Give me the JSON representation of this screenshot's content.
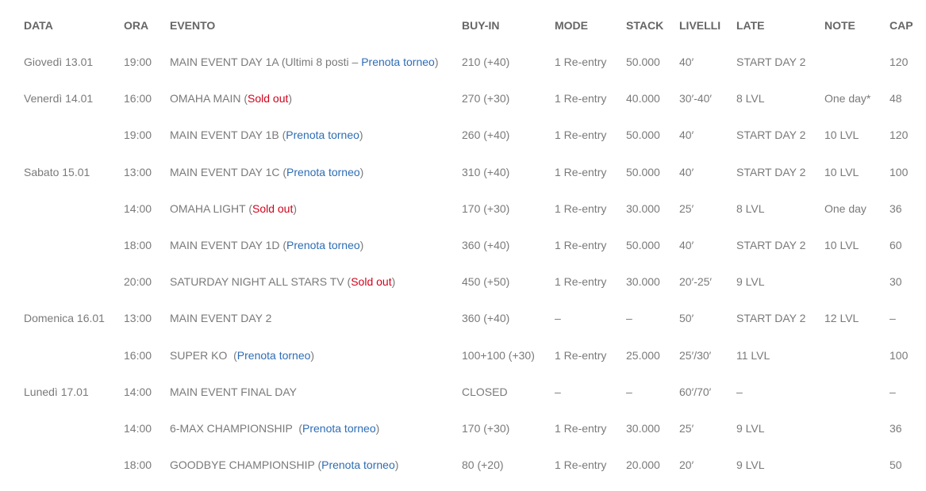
{
  "headers": [
    "DATA",
    "ORA",
    "EVENTO",
    "BUY-IN",
    "MODE",
    "STACK",
    "LIVELLI",
    "LATE",
    "NOTE",
    "CAP"
  ],
  "colors": {
    "text": "#7a7a7a",
    "header": "#666666",
    "link": "#2e6db4",
    "sold_out": "#d0021b"
  },
  "rows": [
    {
      "data": "Giovedì 13.01",
      "ora": "19:00",
      "evento": [
        {
          "t": "MAIN EVENT DAY 1A (Ultimi 8 posti – "
        },
        {
          "t": "Prenota torneo",
          "k": "link"
        },
        {
          "t": ")"
        }
      ],
      "buyin": "210 (+40)",
      "mode": "1 Re-entry",
      "stack": "50.000",
      "livelli": "40′",
      "late": "START DAY 2",
      "note": "",
      "cap": "120"
    },
    {
      "data": "Venerdì 14.01",
      "ora": "16:00",
      "evento": [
        {
          "t": "OMAHA MAIN ("
        },
        {
          "t": "Sold out",
          "k": "sold"
        },
        {
          "t": ")"
        }
      ],
      "buyin": "270 (+30)",
      "mode": "1 Re-entry",
      "stack": "40.000",
      "livelli": "30′-40′",
      "late": "8 LVL",
      "note": "One day*",
      "cap": "48"
    },
    {
      "data": "",
      "ora": "19:00",
      "evento": [
        {
          "t": "MAIN EVENT DAY 1B ("
        },
        {
          "t": "Prenota torneo",
          "k": "link"
        },
        {
          "t": ")"
        }
      ],
      "buyin": "260 (+40)",
      "mode": "1 Re-entry",
      "stack": "50.000",
      "livelli": "40′",
      "late": "START DAY 2",
      "note": "10 LVL",
      "cap": "120"
    },
    {
      "data": "Sabato 15.01",
      "ora": "13:00",
      "evento": [
        {
          "t": "MAIN EVENT DAY 1C ("
        },
        {
          "t": "Prenota torneo",
          "k": "link"
        },
        {
          "t": ")"
        }
      ],
      "buyin": "310 (+40)",
      "mode": "1 Re-entry",
      "stack": "50.000",
      "livelli": "40′",
      "late": "START DAY 2",
      "note": "10 LVL",
      "cap": "100"
    },
    {
      "data": "",
      "ora": "14:00",
      "evento": [
        {
          "t": "OMAHA LIGHT ("
        },
        {
          "t": "Sold out",
          "k": "sold"
        },
        {
          "t": ")"
        }
      ],
      "buyin": "170 (+30)",
      "mode": "1 Re-entry",
      "stack": "30.000",
      "livelli": "25′",
      "late": "8 LVL",
      "note": "One day",
      "cap": "36"
    },
    {
      "data": "",
      "ora": "18:00",
      "evento": [
        {
          "t": "MAIN EVENT DAY 1D ("
        },
        {
          "t": "Prenota torneo",
          "k": "link"
        },
        {
          "t": ")"
        }
      ],
      "buyin": "360 (+40)",
      "mode": "1 Re-entry",
      "stack": "50.000",
      "livelli": "40′",
      "late": "START DAY 2",
      "note": "10 LVL",
      "cap": "60"
    },
    {
      "data": "",
      "ora": "20:00",
      "evento": [
        {
          "t": "SATURDAY NIGHT ALL STARS TV ("
        },
        {
          "t": "Sold out",
          "k": "sold"
        },
        {
          "t": ")"
        }
      ],
      "buyin": "450 (+50)",
      "mode": "1 Re-entry",
      "stack": "30.000",
      "livelli": "20′-25′",
      "late": "9 LVL",
      "note": "",
      "cap": "30"
    },
    {
      "data": "Domenica 16.01",
      "ora": "13:00",
      "evento": [
        {
          "t": "MAIN EVENT DAY 2"
        }
      ],
      "buyin": "360 (+40)",
      "mode": "–",
      "stack": "–",
      "livelli": "50′",
      "late": "START DAY 2",
      "note": "12 LVL",
      "cap": "–"
    },
    {
      "data": "",
      "ora": "16:00",
      "evento": [
        {
          "t": "SUPER KO  ("
        },
        {
          "t": "Prenota torneo",
          "k": "link"
        },
        {
          "t": ")"
        }
      ],
      "buyin": "100+100 (+30)",
      "mode": "1 Re-entry",
      "stack": "25.000",
      "livelli": "25′/30′",
      "late": "11 LVL",
      "note": "",
      "cap": "100"
    },
    {
      "data": "Lunedì 17.01",
      "ora": "14:00",
      "evento": [
        {
          "t": "MAIN EVENT FINAL DAY"
        }
      ],
      "buyin": "CLOSED",
      "mode": "–",
      "stack": "–",
      "livelli": "60′/70′",
      "late": "–",
      "note": "",
      "cap": "–"
    },
    {
      "data": "",
      "ora": "14:00",
      "evento": [
        {
          "t": "6-MAX CHAMPIONSHIP  ("
        },
        {
          "t": "Prenota torneo",
          "k": "link"
        },
        {
          "t": ")"
        }
      ],
      "buyin": "170 (+30)",
      "mode": "1 Re-entry",
      "stack": "30.000",
      "livelli": "25′",
      "late": "9 LVL",
      "note": "",
      "cap": "36"
    },
    {
      "data": "",
      "ora": "18:00",
      "evento": [
        {
          "t": "GOODBYE CHAMPIONSHIP ("
        },
        {
          "t": "Prenota torneo",
          "k": "link"
        },
        {
          "t": ")"
        }
      ],
      "buyin": "80 (+20)",
      "mode": "1 Re-entry",
      "stack": "20.000",
      "livelli": "20′",
      "late": "9 LVL",
      "note": "",
      "cap": "50"
    }
  ]
}
